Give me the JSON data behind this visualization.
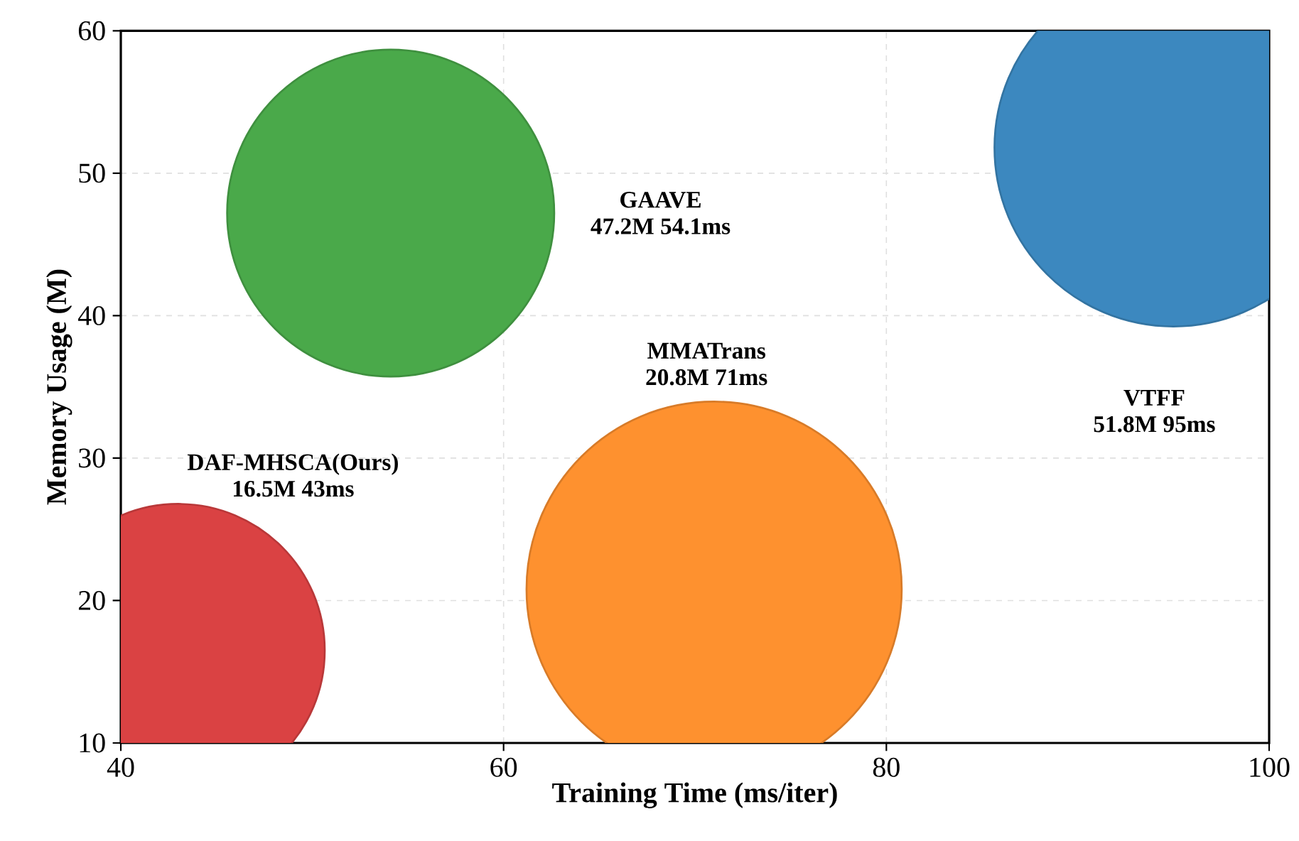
{
  "chart_data": {
    "type": "bubble",
    "xlabel": "Training Time (ms/iter)",
    "ylabel": "Memory Usage (M)",
    "xlim": [
      40,
      100
    ],
    "ylim": [
      10,
      60
    ],
    "xticks": [
      40,
      60,
      80,
      100
    ],
    "yticks": [
      10,
      20,
      30,
      40,
      50,
      60
    ],
    "grid": true,
    "series": [
      {
        "name": "DAF-MHSCA(Ours)",
        "color": "#da4243",
        "x": [
          43
        ],
        "values": [
          16.5
        ],
        "sizes": [
          0.61
        ]
      },
      {
        "name": "GAAVE",
        "color": "#4aa94a",
        "x": [
          54.1
        ],
        "values": [
          47.2
        ],
        "sizes": [
          0.76
        ]
      },
      {
        "name": "MMATrans",
        "color": "#fe912f",
        "x": [
          71
        ],
        "values": [
          20.8
        ],
        "sizes": [
          1
        ]
      },
      {
        "name": "VTFF",
        "color": "#3c88bf",
        "x": [
          95
        ],
        "values": [
          51.8
        ],
        "sizes": [
          0.91
        ]
      }
    ],
    "annotations": [
      "16.5M 43ms",
      "47.2M 54.1ms",
      "20.8M 71ms",
      "51.8M 95ms"
    ]
  }
}
